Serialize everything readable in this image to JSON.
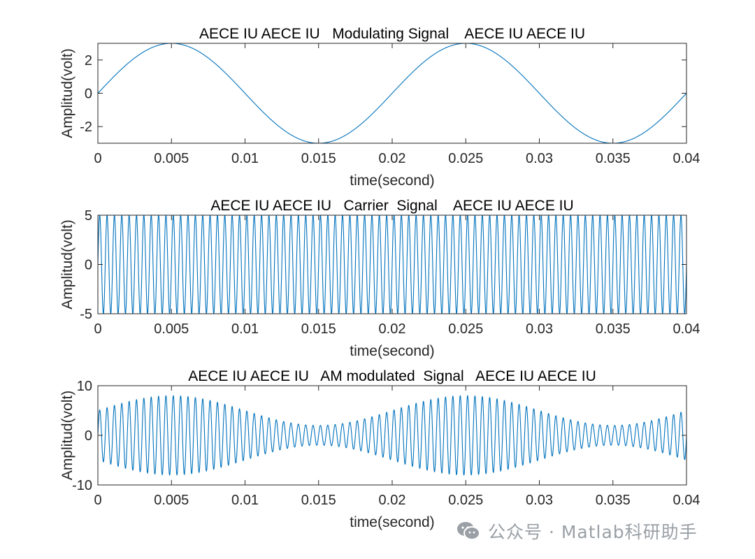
{
  "chart_data": [
    {
      "type": "line",
      "title": "AECE IU AECE IU   Modulating Signal    AECE IU AECE IU",
      "xlabel": "time(second)",
      "ylabel": "Amplitud(volt)",
      "xlim": [
        0,
        0.04
      ],
      "ylim": [
        -3,
        3
      ],
      "xticks": [
        0,
        0.005,
        0.01,
        0.015,
        0.02,
        0.025,
        0.03,
        0.035,
        0.04
      ],
      "xtick_labels": [
        "0",
        "0.005",
        "0.01",
        "0.015",
        "0.02",
        "0.025",
        "0.03",
        "0.035",
        "0.04"
      ],
      "yticks": [
        -2,
        0,
        2
      ],
      "ytick_labels": [
        "-2",
        "0",
        "2"
      ],
      "grid": false,
      "color": "#0072BD",
      "signal": {
        "kind": "sine",
        "amplitude": 3,
        "frequency_hz": 50
      }
    },
    {
      "type": "line",
      "title": "AECE IU AECE IU   Carrier  Signal    AECE IU AECE IU",
      "xlabel": "time(second)",
      "ylabel": "Amplitud(volt)",
      "xlim": [
        0,
        0.04
      ],
      "ylim": [
        -5,
        5
      ],
      "xticks": [
        0,
        0.005,
        0.01,
        0.015,
        0.02,
        0.025,
        0.03,
        0.035,
        0.04
      ],
      "xtick_labels": [
        "0",
        "0.005",
        "0.01",
        "0.015",
        "0.02",
        "0.025",
        "0.03",
        "0.035",
        "0.04"
      ],
      "yticks": [
        -5,
        0,
        5
      ],
      "ytick_labels": [
        "-5",
        "0",
        "5"
      ],
      "grid": false,
      "color": "#0072BD",
      "signal": {
        "kind": "sine",
        "amplitude": 5,
        "frequency_hz": 2000
      }
    },
    {
      "type": "line",
      "title": "AECE IU AECE IU   AM modulated  Signal   AECE IU AECE IU",
      "xlabel": "time(second)",
      "ylabel": "Amplitud(volt)",
      "xlim": [
        0,
        0.04
      ],
      "ylim": [
        -10,
        10
      ],
      "xticks": [
        0,
        0.005,
        0.01,
        0.015,
        0.02,
        0.025,
        0.03,
        0.035,
        0.04
      ],
      "xtick_labels": [
        "0",
        "0.005",
        "0.01",
        "0.015",
        "0.02",
        "0.025",
        "0.03",
        "0.035",
        "0.04"
      ],
      "yticks": [
        -10,
        0,
        10
      ],
      "ytick_labels": [
        "-10",
        "0",
        "10"
      ],
      "grid": false,
      "color": "#0072BD",
      "signal": {
        "kind": "am",
        "carrier_amplitude": 5,
        "carrier_frequency_hz": 2000,
        "modulation_index": 0.6,
        "message_frequency_hz": 50
      }
    }
  ],
  "watermark": {
    "text": "公众号 · Matlab科研助手",
    "icon": "wechat-icon"
  }
}
